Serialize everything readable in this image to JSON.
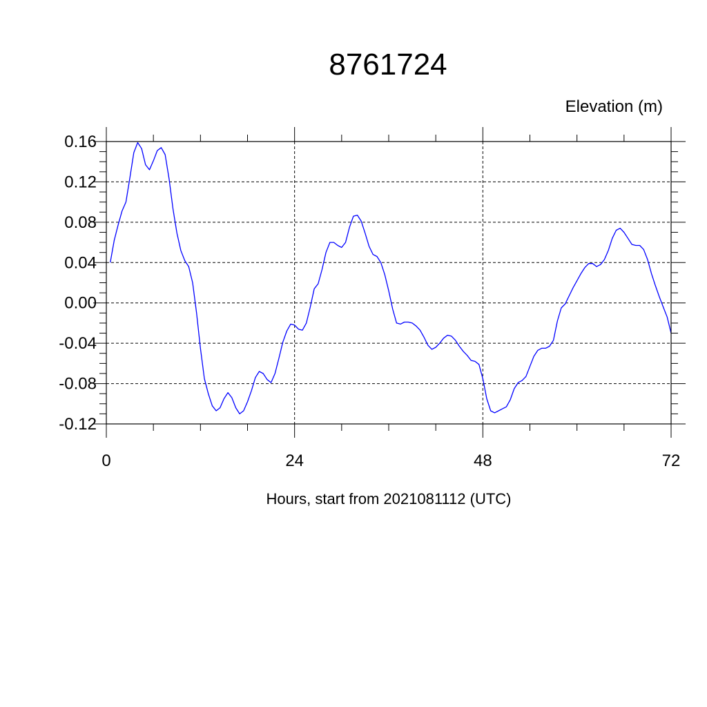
{
  "chart_data": {
    "type": "line",
    "title": "8761724",
    "ylabel": "Elevation (m)",
    "xlabel": "Hours, start from 2021081112 (UTC)",
    "xlim": [
      0,
      72
    ],
    "ylim": [
      -0.12,
      0.16
    ],
    "x_ticks": [
      0,
      24,
      48,
      72
    ],
    "x_tick_labels": [
      "0",
      "24",
      "48",
      "72"
    ],
    "y_ticks": [
      -0.12,
      -0.08,
      -0.04,
      0.0,
      0.04,
      0.08,
      0.12,
      0.16
    ],
    "y_tick_labels": [
      "-0.12",
      "-0.08",
      "-0.04",
      "0.00",
      "0.04",
      "0.08",
      "0.12",
      "0.16"
    ],
    "grid": true,
    "line_color": "#0000ff",
    "series": [
      {
        "x": [
          0.5,
          1.0,
          1.5,
          2.0,
          2.5,
          3.0,
          3.5,
          4.0,
          4.5,
          5.0,
          5.5,
          6.0,
          6.5,
          7.0,
          7.5,
          8.0,
          8.5,
          9.0,
          9.5,
          10.0,
          10.5,
          11.0,
          11.5,
          12.0,
          12.5,
          13.0,
          13.5,
          14.0,
          14.5,
          15.0,
          15.5,
          16.0,
          16.5,
          17.0,
          17.5,
          18.0,
          18.5,
          19.0,
          19.5,
          20.0,
          20.5,
          21.0,
          21.5,
          22.0,
          22.5,
          23.0,
          23.5,
          24.0,
          24.5,
          25.0,
          25.5,
          26.0,
          26.5,
          27.0,
          27.5,
          28.0,
          28.5,
          29.0,
          29.5,
          30.0,
          30.5,
          31.0,
          31.5,
          32.0,
          32.5,
          33.0,
          33.5,
          34.0,
          34.5,
          35.0,
          35.5,
          36.0,
          36.5,
          37.0,
          37.5,
          38.0,
          38.5,
          39.0,
          39.5,
          40.0,
          40.5,
          41.0,
          41.5,
          42.0,
          42.5,
          43.0,
          43.5,
          44.0,
          44.5,
          45.0,
          45.5,
          46.0,
          46.5,
          47.0,
          47.5,
          48.0,
          48.5,
          49.0,
          49.5,
          50.0,
          50.5,
          51.0,
          51.5,
          52.0,
          52.5,
          53.0,
          53.5,
          54.0,
          54.5,
          55.0,
          55.5,
          56.0,
          56.5,
          57.0,
          57.5,
          58.0,
          58.5,
          59.0,
          59.5,
          60.0,
          60.5,
          61.0,
          61.5,
          62.0,
          62.5,
          63.0,
          63.5,
          64.0,
          64.5,
          65.0,
          65.5,
          66.0,
          66.5,
          67.0,
          67.5,
          68.0,
          68.5,
          69.0,
          69.5,
          70.0,
          70.5,
          71.0,
          71.5,
          72.0
        ],
        "y": [
          0.04,
          0.062,
          0.077,
          0.091,
          0.1,
          0.124,
          0.149,
          0.159,
          0.153,
          0.137,
          0.132,
          0.141,
          0.151,
          0.154,
          0.147,
          0.123,
          0.093,
          0.069,
          0.052,
          0.042,
          0.036,
          0.02,
          -0.01,
          -0.045,
          -0.075,
          -0.09,
          -0.102,
          -0.107,
          -0.104,
          -0.095,
          -0.089,
          -0.094,
          -0.104,
          -0.11,
          -0.107,
          -0.098,
          -0.087,
          -0.074,
          -0.068,
          -0.07,
          -0.076,
          -0.079,
          -0.07,
          -0.055,
          -0.039,
          -0.028,
          -0.021,
          -0.022,
          -0.026,
          -0.027,
          -0.02,
          -0.004,
          0.014,
          0.019,
          0.033,
          0.05,
          0.06,
          0.06,
          0.057,
          0.055,
          0.06,
          0.075,
          0.086,
          0.087,
          0.081,
          0.069,
          0.056,
          0.048,
          0.046,
          0.04,
          0.028,
          0.012,
          -0.006,
          -0.02,
          -0.021,
          -0.019,
          -0.019,
          -0.02,
          -0.023,
          -0.027,
          -0.034,
          -0.042,
          -0.046,
          -0.044,
          -0.04,
          -0.035,
          -0.032,
          -0.033,
          -0.037,
          -0.043,
          -0.048,
          -0.052,
          -0.057,
          -0.058,
          -0.061,
          -0.075,
          -0.095,
          -0.107,
          -0.109,
          -0.107,
          -0.105,
          -0.103,
          -0.096,
          -0.085,
          -0.079,
          -0.077,
          -0.073,
          -0.063,
          -0.053,
          -0.047,
          -0.045,
          -0.045,
          -0.043,
          -0.037,
          -0.018,
          -0.005,
          -0.001,
          0.007,
          0.015,
          0.022,
          0.029,
          0.035,
          0.039,
          0.039,
          0.036,
          0.038,
          0.043,
          0.052,
          0.064,
          0.072,
          0.074,
          0.07,
          0.064,
          0.058,
          0.057,
          0.057,
          0.053,
          0.043,
          0.029,
          0.017,
          0.006,
          -0.004,
          -0.014,
          -0.03
        ]
      }
    ]
  }
}
